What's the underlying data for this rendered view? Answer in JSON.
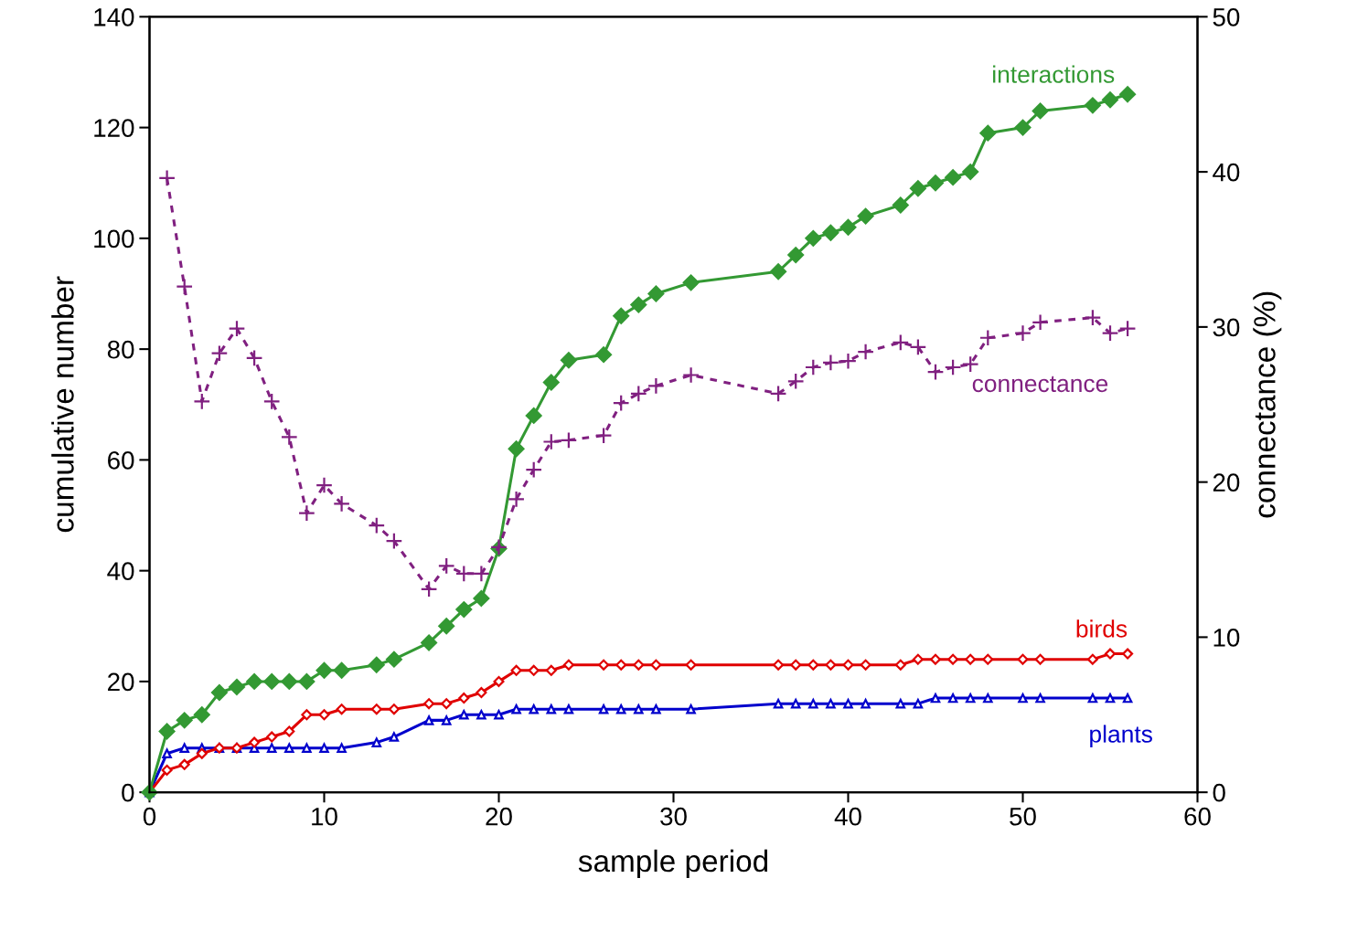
{
  "chart_data": {
    "type": "line",
    "xlabel": "sample period",
    "ylabel": "cumulative number",
    "y2label": "connectance (%)",
    "xlim": [
      0,
      60
    ],
    "xticks": [
      0,
      10,
      20,
      30,
      40,
      50,
      60
    ],
    "ylim": [
      0,
      140
    ],
    "yticks": [
      0,
      20,
      40,
      60,
      80,
      100,
      120,
      140
    ],
    "y2lim": [
      0,
      50
    ],
    "y2ticks": [
      0,
      10,
      20,
      30,
      40,
      50
    ],
    "grid": false,
    "legend": false,
    "x": [
      0,
      1,
      2,
      3,
      4,
      5,
      6,
      7,
      8,
      9,
      10,
      11,
      13,
      14,
      16,
      17,
      18,
      19,
      20,
      21,
      22,
      23,
      24,
      26,
      27,
      28,
      29,
      31,
      36,
      37,
      38,
      39,
      40,
      41,
      43,
      44,
      45,
      46,
      47,
      48,
      50,
      51,
      54,
      55,
      56
    ],
    "series": [
      {
        "name": "interactions",
        "color": "#339933",
        "marker": "diamond",
        "line_style": "solid",
        "values": [
          0,
          11,
          13,
          14,
          18,
          19,
          20,
          20,
          20,
          20,
          22,
          22,
          23,
          24,
          27,
          30,
          33,
          35,
          44,
          62,
          68,
          74,
          78,
          79,
          86,
          88,
          90,
          92,
          94,
          97,
          100,
          101,
          102,
          104,
          106,
          109,
          110,
          111,
          112,
          119,
          120,
          123,
          124,
          125,
          126
        ]
      },
      {
        "name": "connectance",
        "color": "#802080",
        "marker": "cross",
        "line_style": "dashed",
        "axis": "y2",
        "values": [
          null,
          39.6,
          32.6,
          25.2,
          28.3,
          29.9,
          28.0,
          25.2,
          22.9,
          18.0,
          19.8,
          18.6,
          17.2,
          16.2,
          13.1,
          14.6,
          14.1,
          14.1,
          15.8,
          18.9,
          20.8,
          22.6,
          22.7,
          23.0,
          25.1,
          25.7,
          26.2,
          26.9,
          25.7,
          26.5,
          27.4,
          27.7,
          27.8,
          28.4,
          29.0,
          28.7,
          27.1,
          27.4,
          27.6,
          29.3,
          29.6,
          30.3,
          30.6,
          29.6,
          29.9
        ]
      },
      {
        "name": "birds",
        "color": "#e00000",
        "marker": "diamond",
        "line_style": "solid",
        "values": [
          0,
          4,
          5,
          7,
          8,
          8,
          9,
          10,
          11,
          14,
          14,
          15,
          15,
          15,
          16,
          16,
          17,
          18,
          20,
          22,
          22,
          22,
          23,
          23,
          23,
          23,
          23,
          23,
          23,
          23,
          23,
          23,
          23,
          23,
          23,
          24,
          24,
          24,
          24,
          24,
          24,
          24,
          24,
          25,
          25
        ]
      },
      {
        "name": "plants",
        "color": "#0000cc",
        "marker": "triangle",
        "line_style": "solid",
        "values": [
          0,
          7,
          8,
          8,
          8,
          8,
          8,
          8,
          8,
          8,
          8,
          8,
          9,
          10,
          13,
          13,
          14,
          14,
          14,
          15,
          15,
          15,
          15,
          15,
          15,
          15,
          15,
          15,
          16,
          16,
          16,
          16,
          16,
          16,
          16,
          16,
          17,
          17,
          17,
          17,
          17,
          17,
          17,
          17,
          17
        ]
      }
    ]
  }
}
